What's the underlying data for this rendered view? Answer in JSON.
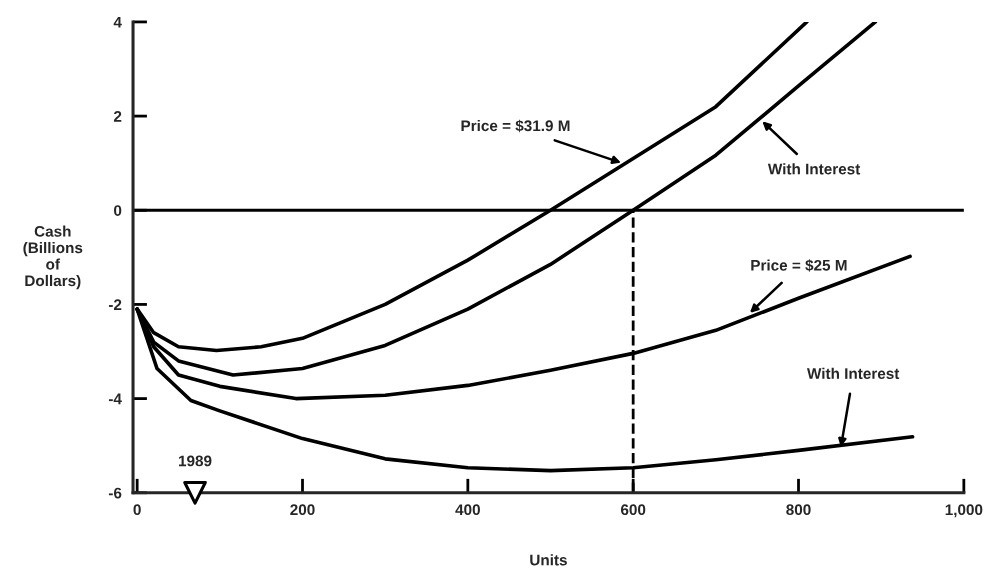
{
  "chart_data": {
    "type": "line",
    "xlabel": "Units",
    "ylabel": "Cash\n(Billions\nof\nDollars)",
    "xlim": [
      -5,
      1000
    ],
    "ylim": [
      -6,
      4
    ],
    "xticks": [
      0,
      200,
      400,
      600,
      800,
      {
        "value": 1000,
        "label": "1,000"
      }
    ],
    "yticks": [
      -6,
      -4,
      -2,
      0,
      2,
      4
    ],
    "grid": false,
    "legend": false,
    "marker": "none",
    "line_style": "solid",
    "series": [
      {
        "color": "#000000",
        "x": [
          0,
          20,
          50,
          96,
          150,
          200,
          300,
          400,
          500,
          600,
          700,
          810
        ],
        "values": [
          -2.1,
          -2.6,
          -2.9,
          -2.98,
          -2.9,
          -2.72,
          -2.0,
          -1.06,
          0,
          1.1,
          2.2,
          4.0
        ]
      },
      {
        "color": "#000000",
        "x": [
          0,
          20,
          50,
          116,
          200,
          300,
          400,
          500,
          600,
          700,
          800,
          893
        ],
        "values": [
          -2.1,
          -2.8,
          -3.2,
          -3.5,
          -3.36,
          -2.87,
          -2.1,
          -1.15,
          0,
          1.17,
          2.64,
          4.0
        ]
      },
      {
        "color": "#000000",
        "x": [
          0,
          20,
          50,
          100,
          192,
          300,
          400,
          500,
          600,
          700,
          800,
          935
        ],
        "values": [
          -2.1,
          -2.9,
          -3.5,
          -3.74,
          -4.0,
          -3.93,
          -3.72,
          -3.4,
          -3.04,
          -2.55,
          -1.87,
          -0.98
        ]
      },
      {
        "color": "#000000",
        "x": [
          0,
          24,
          65,
          100,
          200,
          300,
          400,
          500,
          600,
          700,
          800,
          938
        ],
        "values": [
          -2.1,
          -3.36,
          -4.04,
          -4.26,
          -4.85,
          -5.28,
          -5.47,
          -5.53,
          -5.47,
          -5.3,
          -5.1,
          -4.81
        ]
      },
      {
        "type": "scatter",
        "marker": "triangle",
        "color": "#000000",
        "x": [
          70
        ],
        "values": [
          -6
        ]
      }
    ],
    "ref_lines": [
      {
        "axis": "y",
        "value": 0,
        "line_style": "solid",
        "color": "#000000"
      },
      {
        "axis": "x",
        "value": 600,
        "line_style": "dashed",
        "color": "#000000"
      }
    ],
    "annotations": [
      {
        "text": "Price = $31.9 M",
        "x": 587,
        "y": 1.0
      },
      {
        "text": "With Interest",
        "x": 755,
        "y": 1.91
      },
      {
        "text": "Price = $25 M",
        "x": 740,
        "y": -2.2
      },
      {
        "text": "With Interest",
        "x": 851,
        "y": -5.06
      },
      {
        "text": "1989",
        "x": 70,
        "y": -6
      }
    ]
  }
}
